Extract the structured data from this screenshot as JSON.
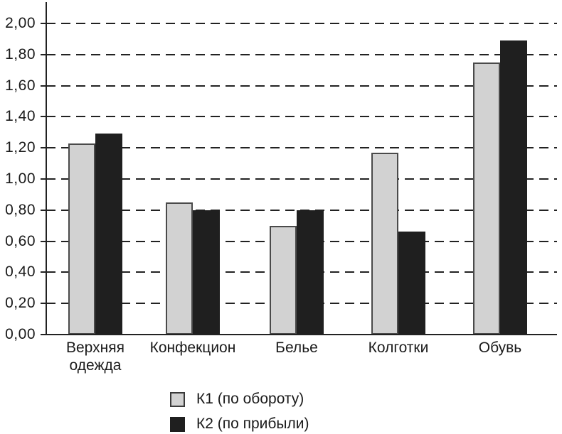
{
  "chart_data": {
    "type": "bar",
    "title": "",
    "xlabel": "",
    "ylabel": "",
    "categories": [
      "Верхняя одежда",
      "Конфекцион",
      "Белье",
      "Колготки",
      "Обувь"
    ],
    "series": [
      {
        "name": "К1 (по обороту)",
        "color": "#d2d2d2",
        "border": "#4a4a4a",
        "values": [
          1.23,
          0.85,
          0.7,
          1.17,
          1.75
        ]
      },
      {
        "name": "К2 (по прибыли)",
        "color": "#1f1f1f",
        "border": "#1f1f1f",
        "values": [
          1.29,
          0.8,
          0.8,
          0.66,
          1.89
        ]
      }
    ],
    "ylim": [
      0.0,
      2.0
    ],
    "ytick_step": 0.2,
    "ytick_labels": [
      "0,00",
      "0,20",
      "0,40",
      "0,60",
      "0,80",
      "1,00",
      "1,20",
      "1,40",
      "1,60",
      "1,80",
      "2,00"
    ],
    "decimal_separator": ",",
    "grid": "horizontal-dashed",
    "legend_position": "bottom-center"
  },
  "colors": {
    "background": "#ffffff",
    "axis": "#222222",
    "grid": "#222222",
    "text": "#1a1a1a"
  }
}
